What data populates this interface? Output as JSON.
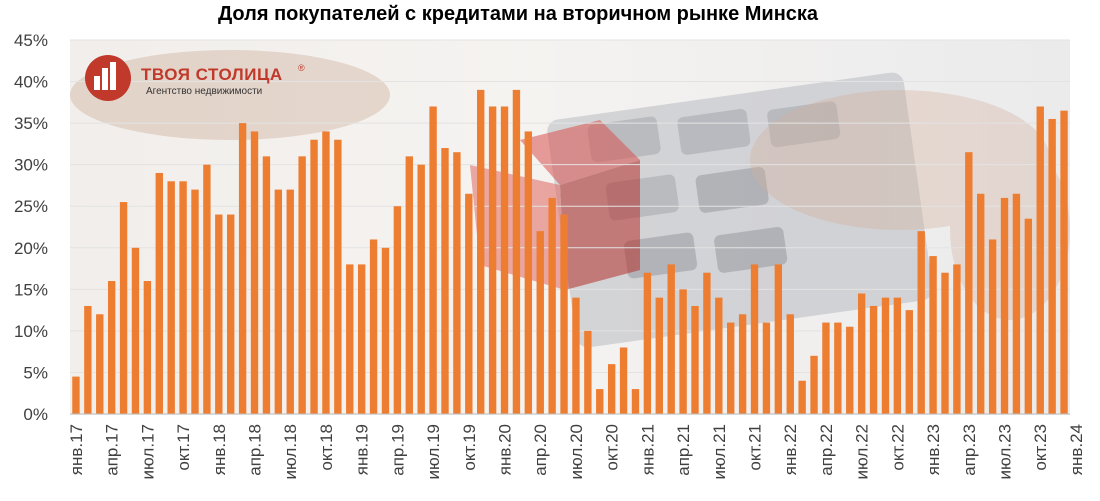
{
  "chart_data": {
    "type": "bar",
    "title": "Доля покупателей с кредитами на вторичном рынке Минска",
    "ylim": [
      0,
      45
    ],
    "yticks": [
      0,
      5,
      10,
      15,
      20,
      25,
      30,
      35,
      40,
      45
    ],
    "ytick_labels": [
      "0%",
      "5%",
      "10%",
      "15%",
      "20%",
      "25%",
      "30%",
      "35%",
      "40%",
      "45%"
    ],
    "value_unit": "%",
    "bar_color": "#ED7D31",
    "grid": true,
    "legend": "none",
    "period_start": "янв.17",
    "period_end": "янв.24",
    "categories_labeled": [
      "янв.17",
      "апр.17",
      "июл.17",
      "окт.17",
      "янв.18",
      "апр.18",
      "июл.18",
      "окт.18",
      "янв.19",
      "апр.19",
      "июл.19",
      "окт.19",
      "янв.20",
      "апр.20",
      "июл.20",
      "окт.20",
      "янв.21",
      "апр.21",
      "июл.21",
      "окт.21",
      "янв.22",
      "апр.22",
      "июл.22",
      "окт.22",
      "янв.23",
      "апр.23",
      "июл.23",
      "окт.23",
      "янв.24"
    ],
    "values": [
      4.5,
      13,
      12,
      16,
      25.5,
      20,
      16,
      29,
      28,
      28,
      27,
      30,
      24,
      24,
      35,
      34,
      31,
      27,
      27,
      31,
      33,
      34,
      33,
      18,
      18,
      21,
      20,
      25,
      31,
      30,
      37,
      32,
      31.5,
      26.5,
      39,
      37,
      37,
      39,
      34,
      22,
      26,
      24,
      14,
      10,
      3,
      6,
      8,
      3,
      17,
      14,
      18,
      15,
      13,
      17,
      14,
      11,
      12,
      18,
      11,
      18,
      12,
      4,
      7,
      11,
      11,
      10.5,
      14.5,
      13,
      14,
      14,
      12.5,
      22,
      19,
      17,
      18,
      31.5,
      26.5,
      21,
      26,
      26.5,
      23.5,
      37,
      35.5,
      36.5
    ]
  },
  "brand": {
    "name": "ТВОЯ СТОЛИЦА",
    "registered_mark": "®",
    "tagline": "Агентство недвижимости",
    "color": "#c0392b"
  }
}
